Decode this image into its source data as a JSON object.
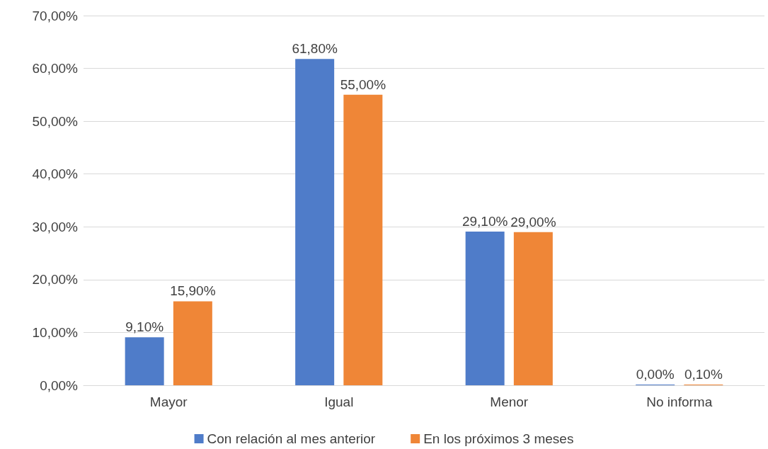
{
  "chart_data": {
    "type": "bar",
    "categories": [
      "Mayor",
      "Igual",
      "Menor",
      "No informa"
    ],
    "series": [
      {
        "name": "Con relación al mes anterior",
        "color": "#4f7cc9",
        "values": [
          9.1,
          61.8,
          29.1,
          0
        ],
        "value_labels": [
          "9,10%",
          "61,80%",
          "29,10%",
          "0,00%"
        ]
      },
      {
        "name": "En los próximos 3 meses",
        "color": "#ef8637",
        "values": [
          15.9,
          55,
          29,
          0.1
        ],
        "value_labels": [
          "15,90%",
          "55,00%",
          "29,00%",
          "0,10%"
        ]
      }
    ],
    "ylim": [
      0,
      70
    ],
    "yticks": [
      {
        "value": 0,
        "label": "0,00%"
      },
      {
        "value": 10,
        "label": "10,00%"
      },
      {
        "value": 20,
        "label": "20,00%"
      },
      {
        "value": 30,
        "label": "30,00%"
      },
      {
        "value": 40,
        "label": "40,00%"
      },
      {
        "value": 50,
        "label": "50,00%"
      },
      {
        "value": 60,
        "label": "60,00%"
      },
      {
        "value": 70,
        "label": "70,00%"
      }
    ],
    "grid": "y",
    "legend": "bottom"
  }
}
